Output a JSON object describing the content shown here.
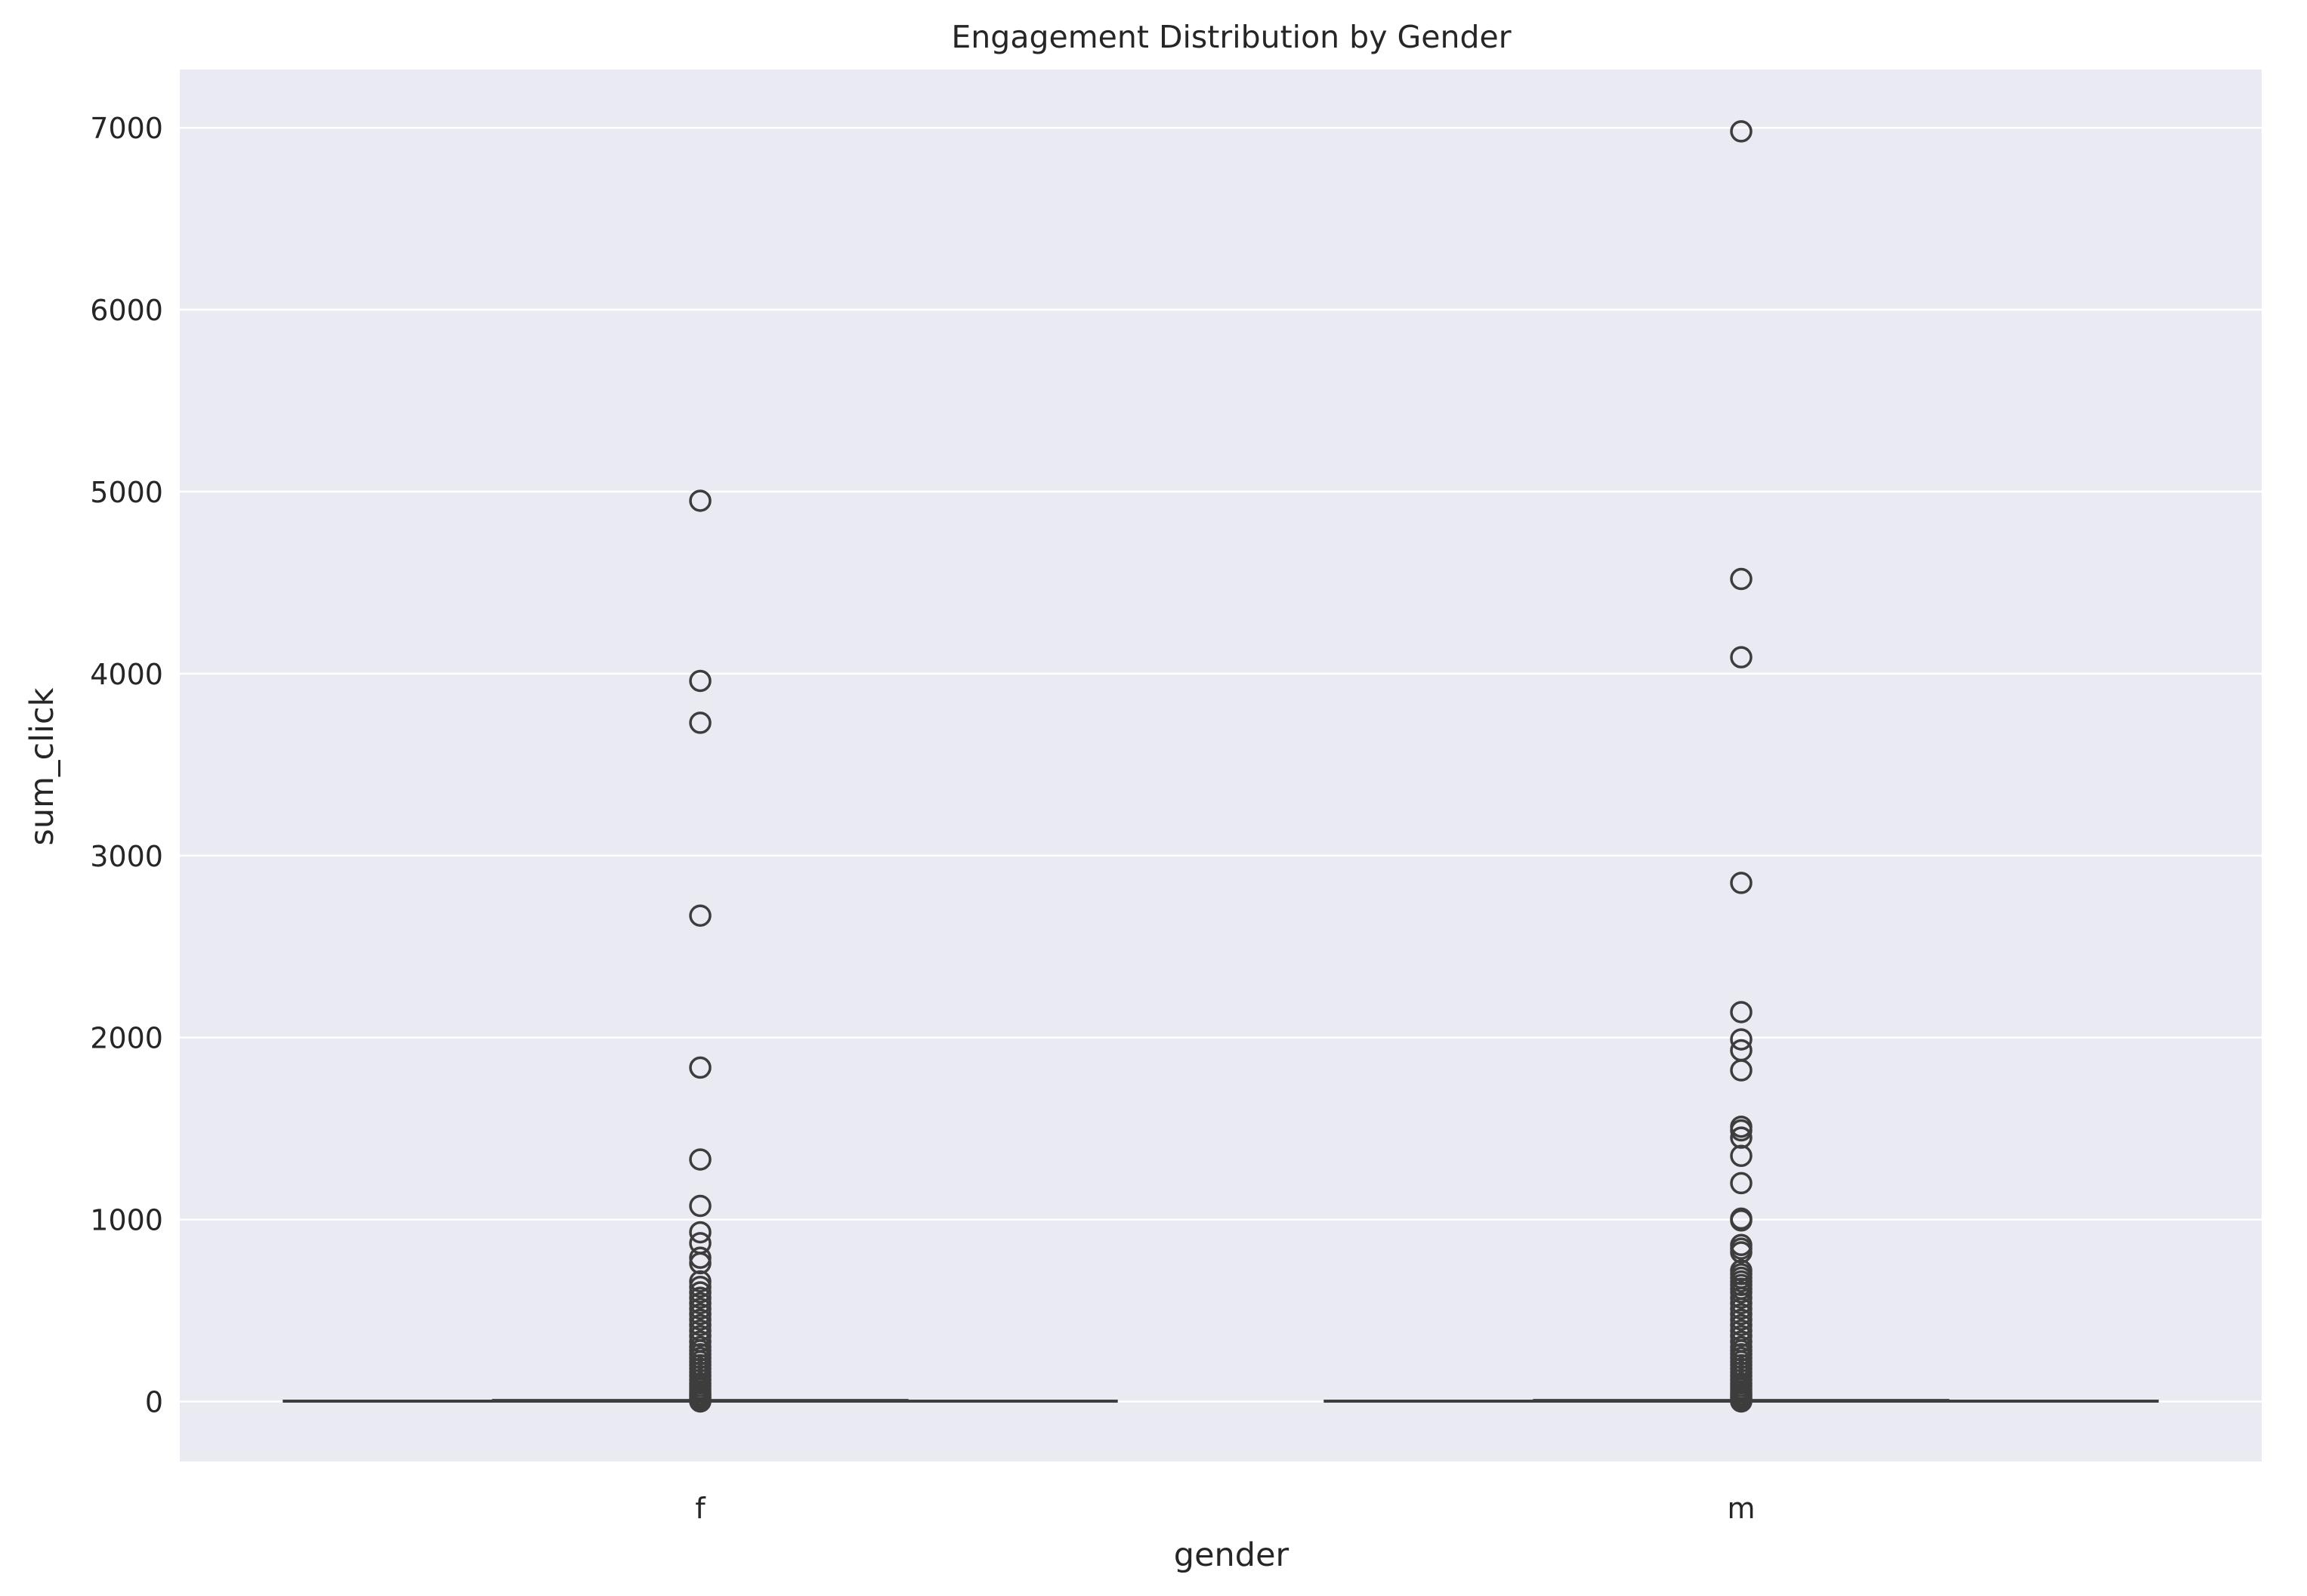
{
  "chart_data": {
    "type": "box",
    "title": "Engagement Distribution by Gender",
    "xlabel": "gender",
    "ylabel": "sum_click",
    "categories": [
      "f",
      "m"
    ],
    "ylim": [
      -330,
      7320
    ],
    "yticks": [
      0,
      1000,
      2000,
      3000,
      4000,
      5000,
      6000,
      7000
    ],
    "grid": true,
    "colors": {
      "background": "#eaeaf2",
      "grid": "#ffffff",
      "box": "#3d3d3d",
      "text": "#262626"
    },
    "boxes": [
      {
        "category": "f",
        "whislo": 1,
        "q1": 1,
        "median": 2,
        "q3": 4,
        "whishi": 8,
        "fliers": [
          4950,
          3960,
          3730,
          2670,
          1835,
          1330,
          1075,
          930,
          870,
          790,
          760,
          660,
          630,
          600,
          570,
          540,
          510,
          480,
          450,
          420,
          390,
          360,
          330,
          300,
          280,
          260,
          240,
          220,
          200,
          180,
          160,
          140,
          120,
          100,
          85,
          70,
          55,
          40,
          30,
          20,
          12,
          0
        ]
      },
      {
        "category": "m",
        "whislo": 1,
        "q1": 1,
        "median": 2,
        "q3": 4,
        "whishi": 8,
        "fliers": [
          6980,
          4520,
          4090,
          2850,
          2140,
          1990,
          1930,
          1820,
          1510,
          1490,
          1450,
          1350,
          1200,
          1005,
          995,
          860,
          840,
          820,
          720,
          700,
          680,
          660,
          640,
          620,
          600,
          570,
          540,
          510,
          480,
          450,
          420,
          390,
          360,
          330,
          300,
          280,
          260,
          240,
          220,
          200,
          180,
          160,
          140,
          120,
          100,
          85,
          70,
          55,
          40,
          30,
          20,
          12,
          0
        ]
      }
    ]
  }
}
